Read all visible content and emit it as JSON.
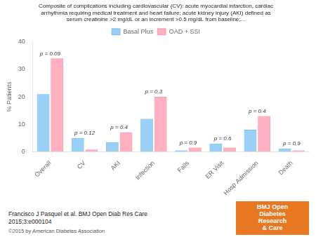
{
  "chart_data": {
    "type": "bar",
    "title": [
      "Composite of complications including cardiovascular (CV): acute myocardial infarction, cardiac",
      "arrhythmia requiring medical treatment and heart failure; acute kidney injury (AKI) defined as",
      "serum creatinine >2 mg/dL or an increment >0.5 mg/dL from baseline;..."
    ],
    "categories": [
      "Overall",
      "CV",
      "AKI",
      "Infection",
      "Falls",
      "ER Visit",
      "Hosp Admission",
      "Death"
    ],
    "series": [
      {
        "name": "Basal Plus",
        "values": [
          21,
          5,
          3.5,
          12,
          0.5,
          3,
          8,
          1.2
        ]
      },
      {
        "name": "OAD + SSI",
        "values": [
          34,
          0.8,
          7,
          20,
          1.5,
          1.5,
          13,
          0.5
        ]
      }
    ],
    "ylabel": "% Patients",
    "ylim": [
      0,
      40
    ],
    "yticks": [
      0,
      10,
      20,
      30,
      40
    ],
    "grid": false,
    "legend": "top",
    "annotations": [
      {
        "category": "Overall",
        "text": "p = 0.09"
      },
      {
        "category": "CV",
        "text": "p = 0.12"
      },
      {
        "category": "AKI",
        "text": "p = 0.4"
      },
      {
        "category": "Infection",
        "text": "p = 0.3"
      },
      {
        "category": "Falls",
        "text": "p = 0.9"
      },
      {
        "category": "ER Visit",
        "text": "p = 0.6"
      },
      {
        "category": "Hosp Admission",
        "text": "p = 0.4"
      },
      {
        "category": "Death",
        "text": "p = 0.9"
      }
    ],
    "footnotes": [
      "Francisco J Pasquel et al. BMJ Open Diab Res Care",
      "2015;3:e000104",
      "©2015 by American Diabetes Association"
    ],
    "badge": {
      "text": "BMJ Open\nDiabetes\nResearch\n& Care",
      "color": "#E87722"
    }
  }
}
